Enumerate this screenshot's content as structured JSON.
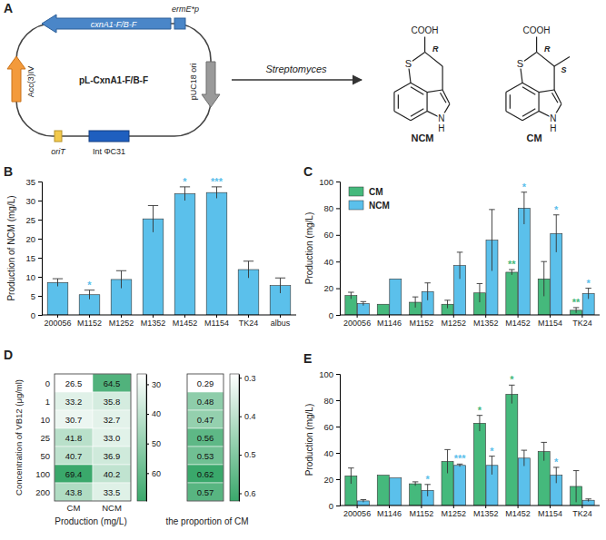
{
  "diagram": {
    "panel_label": "A",
    "plasmid": {
      "name": "pL-CxnA1-F/B-F",
      "gene": "cxnA1-F/B-F",
      "promoter": "ermE*p",
      "resistance": "Acc(3)IV",
      "origin": "pUC18 ori",
      "transfer": "oriT",
      "integrase": "Int ΦC31"
    },
    "arrow_label": "Streptomyces",
    "compounds": [
      {
        "name": "NCM",
        "acid": "COOH",
        "sulfur": "S",
        "nitrogen": "N",
        "hydrogen": "H",
        "stereo": [
          "R"
        ]
      },
      {
        "name": "CM",
        "acid": "COOH",
        "sulfur": "S",
        "nitrogen": "N",
        "hydrogen": "H",
        "stereo": [
          "R",
          "S"
        ]
      }
    ]
  },
  "chart_data": [
    {
      "type": "bar",
      "panel_label": "B",
      "ylabel": "Production of NCM (mg/L)",
      "categories": [
        "200056",
        "M1152",
        "M1252",
        "M1352",
        "M1452",
        "M1154",
        "TK24",
        "albus"
      ],
      "values": [
        8.5,
        5.3,
        9.3,
        25.2,
        31.8,
        32.1,
        11.9,
        7.7
      ],
      "errors": [
        1.0,
        1.2,
        2.3,
        3.5,
        1.8,
        1.5,
        2.2,
        2.0
      ],
      "significance": [
        null,
        "*",
        null,
        null,
        "*",
        "***",
        null,
        null
      ],
      "color": "#5bc0eb",
      "ylim": [
        0,
        35
      ],
      "yticks": [
        0,
        5,
        10,
        15,
        20,
        25,
        30,
        35
      ]
    },
    {
      "type": "bar",
      "panel_label": "C",
      "ylabel": "Production (mg/L)",
      "categories": [
        "200056",
        "M1146",
        "M1152",
        "M1252",
        "M1352",
        "M1452",
        "M1154",
        "TK24"
      ],
      "series": [
        {
          "name": "CM",
          "color": "#45b97c",
          "values": [
            14.5,
            8,
            9.5,
            8,
            16.5,
            32,
            27,
            3.5
          ],
          "errors": [
            2.5,
            null,
            4,
            3,
            7,
            2,
            13,
            2
          ],
          "significance": [
            null,
            null,
            null,
            null,
            null,
            "**",
            null,
            "**"
          ]
        },
        {
          "name": "NCM",
          "color": "#5bc0eb",
          "values": [
            8.5,
            27,
            17.5,
            37,
            56,
            80,
            61,
            16
          ],
          "errors": [
            1.5,
            null,
            6.5,
            10,
            23,
            12,
            14,
            4
          ],
          "significance": [
            null,
            null,
            null,
            null,
            null,
            "*",
            "*",
            "*"
          ]
        }
      ],
      "legend": "upper left",
      "ylim": [
        0,
        100
      ],
      "yticks": [
        0,
        20,
        40,
        60,
        80,
        100
      ]
    },
    {
      "type": "heatmap",
      "panel_label": "D",
      "ylabel": "Concentration of VB12 (μg/ml)",
      "xlabel": "Production (mg/L)",
      "rows": [
        0,
        1,
        10,
        25,
        50,
        100,
        200
      ],
      "columns": [
        "CM",
        "NCM"
      ],
      "values": [
        [
          26.5,
          64.5
        ],
        [
          33.2,
          35.8
        ],
        [
          30.7,
          32.7
        ],
        [
          41.8,
          33.0
        ],
        [
          40.7,
          36.9
        ],
        [
          69.4,
          40.2
        ],
        [
          43.8,
          33.5
        ]
      ],
      "value_labels": [
        [
          "26.5",
          "64.5"
        ],
        [
          "33.2",
          "35.8"
        ],
        [
          "30.7",
          "32.7"
        ],
        [
          "41.8",
          "33.0"
        ],
        [
          "40.7",
          "36.9"
        ],
        [
          "69.4",
          "40.2"
        ],
        [
          "43.8",
          "33.5"
        ]
      ],
      "color": "#3aa86b",
      "data_labels": true,
      "colorbar": {
        "range": [
          26.5,
          69.4
        ],
        "ticks": [
          30,
          40,
          50,
          60
        ]
      }
    },
    {
      "type": "heatmap",
      "xlabel": "the proportion of CM",
      "values": [
        [
          0.29
        ],
        [
          0.48
        ],
        [
          0.47
        ],
        [
          0.56
        ],
        [
          0.53
        ],
        [
          0.62
        ],
        [
          0.57
        ]
      ],
      "color": "#3aa86b",
      "data_labels": true,
      "colorbar": {
        "range": [
          0.29,
          0.62
        ],
        "ticks": [
          0.3,
          0.4,
          0.5,
          0.6
        ]
      }
    },
    {
      "type": "bar",
      "panel_label": "E",
      "ylabel": "Production (mg/L)",
      "categories": [
        "200056",
        "M1146",
        "M1152",
        "M1252",
        "M1352",
        "M1452",
        "M1154",
        "TK24"
      ],
      "series": [
        {
          "name": "CM",
          "color": "#45b97c",
          "values": [
            22.5,
            23,
            16.5,
            33.5,
            62.5,
            84.5,
            41,
            14.5
          ],
          "errors": [
            6,
            null,
            1.5,
            9,
            6,
            7,
            7,
            12
          ],
          "significance": [
            null,
            null,
            null,
            null,
            "*",
            "*",
            null,
            null
          ]
        },
        {
          "name": "NCM",
          "color": "#5bc0eb",
          "values": [
            3.5,
            21,
            11.5,
            30.5,
            30.5,
            36,
            23,
            4
          ],
          "errors": [
            1,
            null,
            4.5,
            1,
            7,
            6,
            6,
            1
          ],
          "significance": [
            null,
            null,
            "*",
            "***",
            "*",
            null,
            "*",
            null
          ]
        }
      ],
      "ylim": [
        0,
        100
      ],
      "yticks": [
        0,
        20,
        40,
        60,
        80,
        100
      ]
    }
  ]
}
